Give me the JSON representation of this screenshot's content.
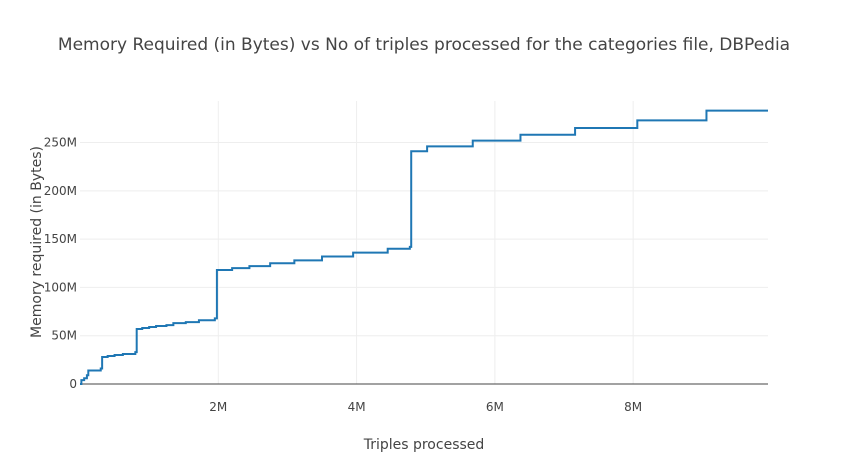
{
  "chart_data": {
    "type": "line",
    "line_shape": "step",
    "title": "Memory Required (in Bytes) vs No of triples processed for the categories file, DBPedia",
    "xlabel": "Triples processed",
    "ylabel": "Memory required (in Bytes)",
    "xlim": [
      0,
      9950000
    ],
    "ylim": [
      0,
      293000000
    ],
    "x_ticks": [
      {
        "value": 2000000,
        "label": "2M"
      },
      {
        "value": 4000000,
        "label": "4M"
      },
      {
        "value": 6000000,
        "label": "6M"
      },
      {
        "value": 8000000,
        "label": "8M"
      }
    ],
    "y_ticks": [
      {
        "value": 0,
        "label": "0"
      },
      {
        "value": 50000000,
        "label": "50M"
      },
      {
        "value": 100000000,
        "label": "100M"
      },
      {
        "value": 150000000,
        "label": "150M"
      },
      {
        "value": 200000000,
        "label": "200M"
      },
      {
        "value": 250000000,
        "label": "250M"
      }
    ],
    "grid": true,
    "legend": false,
    "series": [
      {
        "color": "#1f77b4",
        "points": [
          [
            0,
            0
          ],
          [
            20000,
            4000000
          ],
          [
            60000,
            6000000
          ],
          [
            100000,
            9000000
          ],
          [
            120000,
            14000000
          ],
          [
            300000,
            16000000
          ],
          [
            320000,
            28000000
          ],
          [
            400000,
            29000000
          ],
          [
            500000,
            30000000
          ],
          [
            620000,
            31000000
          ],
          [
            800000,
            33000000
          ],
          [
            820000,
            57000000
          ],
          [
            900000,
            58000000
          ],
          [
            1000000,
            59000000
          ],
          [
            1100000,
            60000000
          ],
          [
            1250000,
            61000000
          ],
          [
            1350000,
            63000000
          ],
          [
            1530000,
            64000000
          ],
          [
            1720000,
            66000000
          ],
          [
            1950000,
            68000000
          ],
          [
            1980000,
            118000000
          ],
          [
            2200000,
            120000000
          ],
          [
            2450000,
            122000000
          ],
          [
            2750000,
            125000000
          ],
          [
            3100000,
            128000000
          ],
          [
            3500000,
            132000000
          ],
          [
            3950000,
            136000000
          ],
          [
            4450000,
            140000000
          ],
          [
            4770000,
            142000000
          ],
          [
            4790000,
            241000000
          ],
          [
            5020000,
            246000000
          ],
          [
            5680000,
            252000000
          ],
          [
            6370000,
            258000000
          ],
          [
            7160000,
            265000000
          ],
          [
            8060000,
            273000000
          ],
          [
            9060000,
            283000000
          ],
          [
            9950000,
            283000000
          ]
        ]
      }
    ]
  }
}
